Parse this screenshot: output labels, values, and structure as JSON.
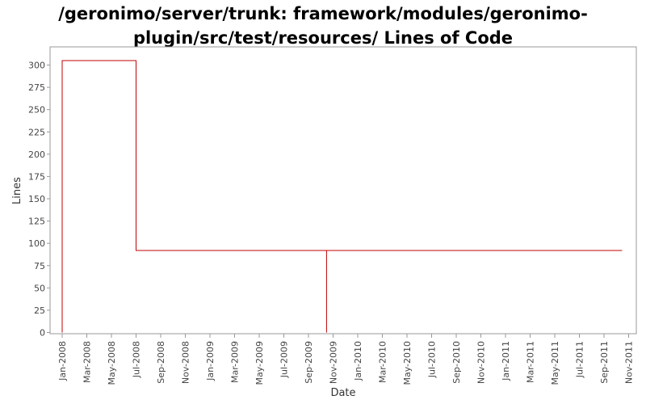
{
  "chart_data": {
    "type": "line",
    "title_line1": "/geronimo/server/trunk: framework/modules/geronimo-",
    "title_line2": "plugin/src/test/resources/ Lines of Code",
    "xlabel": "Date",
    "ylabel": "Lines",
    "ylim": [
      0,
      315
    ],
    "yticks": [
      0,
      25,
      50,
      75,
      100,
      125,
      150,
      175,
      200,
      225,
      250,
      275,
      300
    ],
    "xticks": [
      "Jan-2008",
      "Mar-2008",
      "May-2008",
      "Jul-2008",
      "Sep-2008",
      "Nov-2008",
      "Jan-2009",
      "Mar-2009",
      "May-2009",
      "Jul-2009",
      "Sep-2009",
      "Nov-2009",
      "Jan-2010",
      "Mar-2010",
      "May-2010",
      "Jul-2010",
      "Sep-2010",
      "Nov-2010",
      "Jan-2011",
      "Mar-2011",
      "May-2011",
      "Jul-2011",
      "Sep-2011",
      "Nov-2011"
    ],
    "step_points": [
      {
        "x": "2008-01-01",
        "y": 0
      },
      {
        "x": "2008-01-01",
        "y": 305
      },
      {
        "x": "2008-07-01",
        "y": 305
      },
      {
        "x": "2008-07-01",
        "y": 92
      },
      {
        "x": "2009-10-15",
        "y": 92
      },
      {
        "x": "2009-10-15",
        "y": 0
      },
      {
        "x": "2009-10-15",
        "y": 92
      },
      {
        "x": "2011-10-15",
        "y": 92
      }
    ],
    "line_color": "#c00000",
    "grid": false
  }
}
